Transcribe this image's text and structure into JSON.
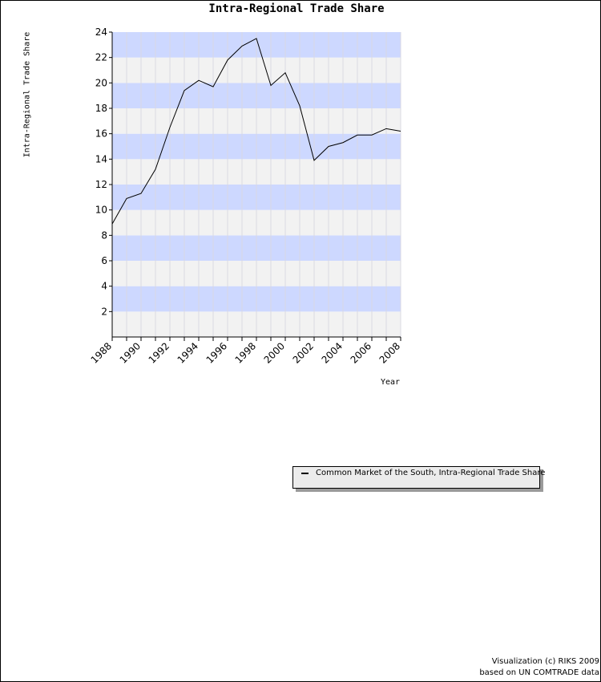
{
  "chart_data": {
    "type": "line",
    "title": "Intra-Regional Trade Share",
    "xlabel": "Year",
    "ylabel": "Intra-Regional Trade Share",
    "x": [
      1988,
      1989,
      1990,
      1991,
      1992,
      1993,
      1994,
      1995,
      1996,
      1997,
      1998,
      1999,
      2000,
      2001,
      2002,
      2003,
      2004,
      2005,
      2006,
      2007,
      2008
    ],
    "series": [
      {
        "name": "Common Market of the South, Intra-Regional Trade Share",
        "color": "#000000",
        "values": [
          8.9,
          10.9,
          11.3,
          13.2,
          16.5,
          19.4,
          20.2,
          19.7,
          21.8,
          22.9,
          23.5,
          19.8,
          20.8,
          18.2,
          13.9,
          15.0,
          15.3,
          15.9,
          15.9,
          16.4,
          16.2
        ]
      }
    ],
    "xlim": [
      1988,
      2008
    ],
    "ylim": [
      0,
      24
    ],
    "x_ticks": [
      1988,
      1990,
      1992,
      1994,
      1996,
      1998,
      2000,
      2002,
      2004,
      2006,
      2008
    ],
    "y_ticks": [
      2,
      4,
      6,
      8,
      10,
      12,
      14,
      16,
      18,
      20,
      22,
      24
    ],
    "band_colors": [
      "#cdd8ff",
      "#f2f2f2"
    ],
    "grid": true,
    "legend": "bottom-right"
  },
  "credits": {
    "line1": "Visualization (c) RIKS 2009",
    "line2": "based on UN COMTRADE data"
  }
}
